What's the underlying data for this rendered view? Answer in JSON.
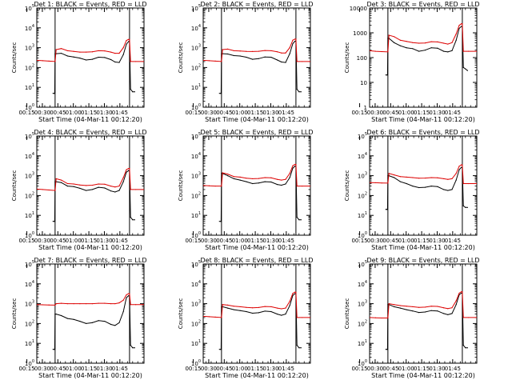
{
  "colors": {
    "events": "#000000",
    "lld": "#dd0000",
    "axis": "#000000",
    "background": "#ffffff"
  },
  "shared": {
    "xlabel": "Start Time (04-Mar-11 00:12:20)",
    "ylabel": "Counts/sec",
    "x_ticks": [
      "00:15",
      "00:30",
      "00:45",
      "01:00",
      "01:15",
      "01:30",
      "01:45"
    ],
    "x_range_min": [
      12.3,
      116
    ],
    "scale": "log",
    "vlines_min": [
      30,
      102
    ]
  },
  "chart_data": [
    {
      "type": "line",
      "title": "Det 1: BLACK = Events, RED = LLD",
      "ylim": [
        1,
        100000
      ],
      "y_ticks": [
        "10^0",
        "10^1",
        "10^2",
        "10^3",
        "10^4",
        "10^5"
      ],
      "series": [
        {
          "name": "Events",
          "x": [
            28,
            29,
            29.6,
            30,
            31,
            36,
            42,
            48,
            54,
            60,
            66,
            72,
            78,
            84,
            88,
            92,
            96,
            99,
            101,
            102,
            103,
            105,
            107
          ],
          "y": [
            5,
            5,
            5,
            500,
            500,
            520,
            380,
            340,
            300,
            240,
            260,
            330,
            320,
            250,
            190,
            180,
            450,
            1500,
            2000,
            2200,
            8,
            6,
            6
          ]
        },
        {
          "name": "LLD",
          "x": [
            12.3,
            18,
            24,
            30,
            31,
            36,
            42,
            48,
            54,
            60,
            66,
            72,
            78,
            84,
            88,
            92,
            96,
            99,
            101,
            102,
            103,
            108,
            116
          ],
          "y": [
            230,
            220,
            210,
            200,
            800,
            900,
            700,
            650,
            600,
            600,
            620,
            700,
            690,
            600,
            520,
            520,
            1000,
            2300,
            2600,
            2600,
            200,
            200,
            200
          ]
        }
      ]
    },
    {
      "type": "line",
      "title": "Det 2: BLACK = Events, RED = LLD",
      "ylim": [
        1,
        100000
      ],
      "y_ticks": [
        "10^0",
        "10^1",
        "10^2",
        "10^3",
        "10^4",
        "10^5"
      ],
      "series": [
        {
          "name": "Events",
          "x": [
            28,
            29,
            29.6,
            30,
            31,
            36,
            42,
            48,
            54,
            60,
            66,
            72,
            78,
            84,
            88,
            92,
            96,
            99,
            101,
            102,
            103,
            105,
            107
          ],
          "y": [
            5,
            5,
            5,
            500,
            500,
            480,
            400,
            380,
            330,
            260,
            280,
            340,
            330,
            240,
            190,
            180,
            500,
            1600,
            2100,
            2200,
            8,
            6,
            6
          ]
        },
        {
          "name": "LLD",
          "x": [
            12.3,
            18,
            24,
            30,
            31,
            36,
            42,
            48,
            54,
            60,
            66,
            72,
            78,
            84,
            88,
            92,
            96,
            99,
            101,
            102,
            103,
            108,
            116
          ],
          "y": [
            230,
            220,
            210,
            200,
            800,
            850,
            700,
            680,
            650,
            640,
            660,
            720,
            700,
            620,
            540,
            540,
            1000,
            2400,
            2700,
            2700,
            200,
            200,
            200
          ]
        }
      ]
    },
    {
      "type": "line",
      "title": "Det 3: BLACK = Events, RED = LLD",
      "ylim": [
        1,
        10000
      ],
      "y_ticks": [
        "1",
        "10",
        "100",
        "1000",
        "10000"
      ],
      "series": [
        {
          "name": "Events",
          "x": [
            28,
            29,
            29.6,
            30,
            31,
            36,
            42,
            48,
            54,
            60,
            66,
            72,
            78,
            84,
            88,
            92,
            96,
            99,
            101,
            102,
            103,
            105,
            107
          ],
          "y": [
            20,
            20,
            20,
            600,
            600,
            400,
            300,
            250,
            230,
            180,
            200,
            250,
            240,
            180,
            170,
            190,
            500,
            1500,
            1800,
            1800,
            40,
            35,
            30
          ]
        },
        {
          "name": "LLD",
          "x": [
            12.3,
            18,
            24,
            30,
            31,
            36,
            42,
            48,
            54,
            60,
            66,
            72,
            78,
            84,
            88,
            92,
            96,
            99,
            101,
            102,
            103,
            108,
            116
          ],
          "y": [
            190,
            180,
            175,
            170,
            800,
            700,
            500,
            450,
            400,
            380,
            390,
            440,
            430,
            380,
            350,
            400,
            900,
            2000,
            2300,
            2300,
            180,
            180,
            180
          ]
        }
      ]
    },
    {
      "type": "line",
      "title": "Det 4: BLACK = Events, RED = LLD",
      "ylim": [
        1,
        100000
      ],
      "y_ticks": [
        "10^0",
        "10^1",
        "10^2",
        "10^3",
        "10^4",
        "10^5"
      ],
      "series": [
        {
          "name": "Events",
          "x": [
            28,
            29,
            29.6,
            30,
            31,
            36,
            42,
            48,
            54,
            60,
            66,
            72,
            78,
            84,
            88,
            92,
            96,
            99,
            101,
            102,
            103,
            105,
            107
          ],
          "y": [
            5,
            5,
            5,
            500,
            500,
            450,
            300,
            280,
            230,
            180,
            200,
            260,
            240,
            170,
            150,
            180,
            500,
            1500,
            1800,
            1800,
            8,
            6,
            6
          ]
        },
        {
          "name": "LLD",
          "x": [
            12.3,
            18,
            24,
            30,
            31,
            36,
            42,
            48,
            54,
            60,
            66,
            72,
            78,
            84,
            88,
            92,
            96,
            99,
            101,
            102,
            103,
            108,
            116
          ],
          "y": [
            210,
            200,
            190,
            180,
            700,
            600,
            400,
            380,
            340,
            320,
            330,
            380,
            370,
            300,
            270,
            300,
            800,
            2000,
            2300,
            2300,
            200,
            200,
            200
          ]
        }
      ]
    },
    {
      "type": "line",
      "title": "Det 5: BLACK = Events, RED = LLD",
      "ylim": [
        1,
        100000
      ],
      "y_ticks": [
        "10^0",
        "10^1",
        "10^2",
        "10^3",
        "10^4",
        "10^5"
      ],
      "series": [
        {
          "name": "Events",
          "x": [
            28,
            29,
            29.6,
            30,
            31,
            36,
            42,
            48,
            54,
            60,
            66,
            72,
            78,
            84,
            88,
            92,
            96,
            99,
            101,
            102,
            103,
            105,
            107
          ],
          "y": [
            5,
            5,
            5,
            1300,
            1300,
            1000,
            700,
            600,
            500,
            400,
            430,
            500,
            480,
            360,
            330,
            380,
            800,
            2400,
            3000,
            3000,
            8,
            6,
            6
          ]
        },
        {
          "name": "LLD",
          "x": [
            12.3,
            18,
            24,
            30,
            31,
            36,
            42,
            48,
            54,
            60,
            66,
            72,
            78,
            84,
            88,
            92,
            96,
            99,
            101,
            102,
            103,
            108,
            116
          ],
          "y": [
            320,
            310,
            300,
            300,
            1400,
            1200,
            900,
            850,
            750,
            700,
            720,
            800,
            780,
            650,
            600,
            650,
            1300,
            3200,
            3700,
            3700,
            300,
            300,
            300
          ]
        }
      ]
    },
    {
      "type": "line",
      "title": "Det 6: BLACK = Events, RED = LLD",
      "ylim": [
        1,
        100000
      ],
      "y_ticks": [
        "10^0",
        "10^1",
        "10^2",
        "10^3",
        "10^4",
        "10^5"
      ],
      "series": [
        {
          "name": "Events",
          "x": [
            28,
            29,
            29.6,
            30,
            31,
            36,
            42,
            48,
            54,
            60,
            66,
            72,
            78,
            84,
            88,
            92,
            96,
            99,
            101,
            102,
            103,
            105,
            107
          ],
          "y": [
            20,
            20,
            20,
            1000,
            1000,
            800,
            500,
            400,
            300,
            250,
            260,
            300,
            280,
            200,
            180,
            200,
            600,
            2000,
            2600,
            2600,
            30,
            25,
            25
          ]
        },
        {
          "name": "LLD",
          "x": [
            12.3,
            18,
            24,
            30,
            31,
            36,
            42,
            48,
            54,
            60,
            66,
            72,
            78,
            84,
            88,
            92,
            96,
            99,
            101,
            102,
            103,
            108,
            116
          ],
          "y": [
            450,
            440,
            430,
            420,
            1300,
            1100,
            900,
            850,
            800,
            750,
            760,
            800,
            780,
            700,
            650,
            700,
            1300,
            3000,
            3500,
            3500,
            400,
            400,
            400
          ]
        }
      ]
    },
    {
      "type": "line",
      "title": "Det 7: BLACK = Events, RED = LLD",
      "ylim": [
        1,
        100000
      ],
      "y_ticks": [
        "10^0",
        "10^1",
        "10^2",
        "10^3",
        "10^4",
        "10^5"
      ],
      "series": [
        {
          "name": "Events",
          "x": [
            28,
            29,
            29.6,
            30,
            31,
            36,
            42,
            48,
            54,
            60,
            66,
            72,
            78,
            84,
            88,
            92,
            96,
            99,
            101,
            102,
            103,
            105,
            107
          ],
          "y": [
            5,
            5,
            5,
            300,
            300,
            250,
            180,
            160,
            130,
            100,
            110,
            140,
            130,
            90,
            80,
            110,
            400,
            2000,
            2500,
            2500,
            8,
            6,
            6
          ]
        },
        {
          "name": "LLD",
          "x": [
            12.3,
            18,
            24,
            30,
            31,
            36,
            42,
            48,
            54,
            60,
            66,
            72,
            78,
            84,
            88,
            92,
            96,
            99,
            101,
            102,
            103,
            108,
            116
          ],
          "y": [
            900,
            880,
            860,
            850,
            1000,
            1050,
            1000,
            1000,
            1000,
            1000,
            1000,
            1050,
            1050,
            1000,
            1000,
            1100,
            1500,
            2800,
            3200,
            3200,
            900,
            900,
            900
          ]
        }
      ]
    },
    {
      "type": "line",
      "title": "Det 8: BLACK = Events, RED = LLD",
      "ylim": [
        1,
        100000
      ],
      "y_ticks": [
        "10^0",
        "10^1",
        "10^2",
        "10^3",
        "10^4",
        "10^5"
      ],
      "series": [
        {
          "name": "Events",
          "x": [
            28,
            29,
            29.6,
            30,
            31,
            36,
            42,
            48,
            54,
            60,
            66,
            72,
            78,
            84,
            88,
            92,
            96,
            99,
            101,
            102,
            103,
            105,
            107
          ],
          "y": [
            5,
            5,
            5,
            700,
            700,
            600,
            500,
            450,
            400,
            330,
            350,
            420,
            400,
            300,
            260,
            300,
            800,
            2600,
            3200,
            3200,
            8,
            6,
            6
          ]
        },
        {
          "name": "LLD",
          "x": [
            12.3,
            18,
            24,
            30,
            31,
            36,
            42,
            48,
            54,
            60,
            66,
            72,
            78,
            84,
            88,
            92,
            96,
            99,
            101,
            102,
            103,
            108,
            116
          ],
          "y": [
            230,
            220,
            210,
            200,
            900,
            850,
            750,
            700,
            650,
            620,
            640,
            720,
            700,
            600,
            550,
            600,
            1300,
            3300,
            3800,
            3800,
            200,
            200,
            200
          ]
        }
      ]
    },
    {
      "type": "line",
      "title": "Det 9: BLACK = Events, RED = LLD",
      "ylim": [
        1,
        100000
      ],
      "y_ticks": [
        "10^0",
        "10^1",
        "10^2",
        "10^3",
        "10^4",
        "10^5"
      ],
      "series": [
        {
          "name": "Events",
          "x": [
            28,
            29,
            29.6,
            30,
            31,
            36,
            42,
            48,
            54,
            60,
            66,
            72,
            78,
            84,
            88,
            92,
            96,
            99,
            101,
            102,
            103,
            105,
            107
          ],
          "y": [
            5,
            5,
            5,
            900,
            900,
            700,
            600,
            500,
            430,
            360,
            380,
            450,
            430,
            320,
            280,
            320,
            900,
            2800,
            3400,
            3400,
            8,
            6,
            6
          ]
        },
        {
          "name": "LLD",
          "x": [
            12.3,
            18,
            24,
            30,
            31,
            36,
            42,
            48,
            54,
            60,
            66,
            72,
            78,
            84,
            88,
            92,
            96,
            99,
            101,
            102,
            103,
            108,
            116
          ],
          "y": [
            200,
            195,
            190,
            190,
            1000,
            900,
            800,
            750,
            700,
            650,
            670,
            750,
            730,
            620,
            560,
            620,
            1400,
            3400,
            4000,
            4000,
            200,
            200,
            200
          ]
        }
      ]
    }
  ]
}
